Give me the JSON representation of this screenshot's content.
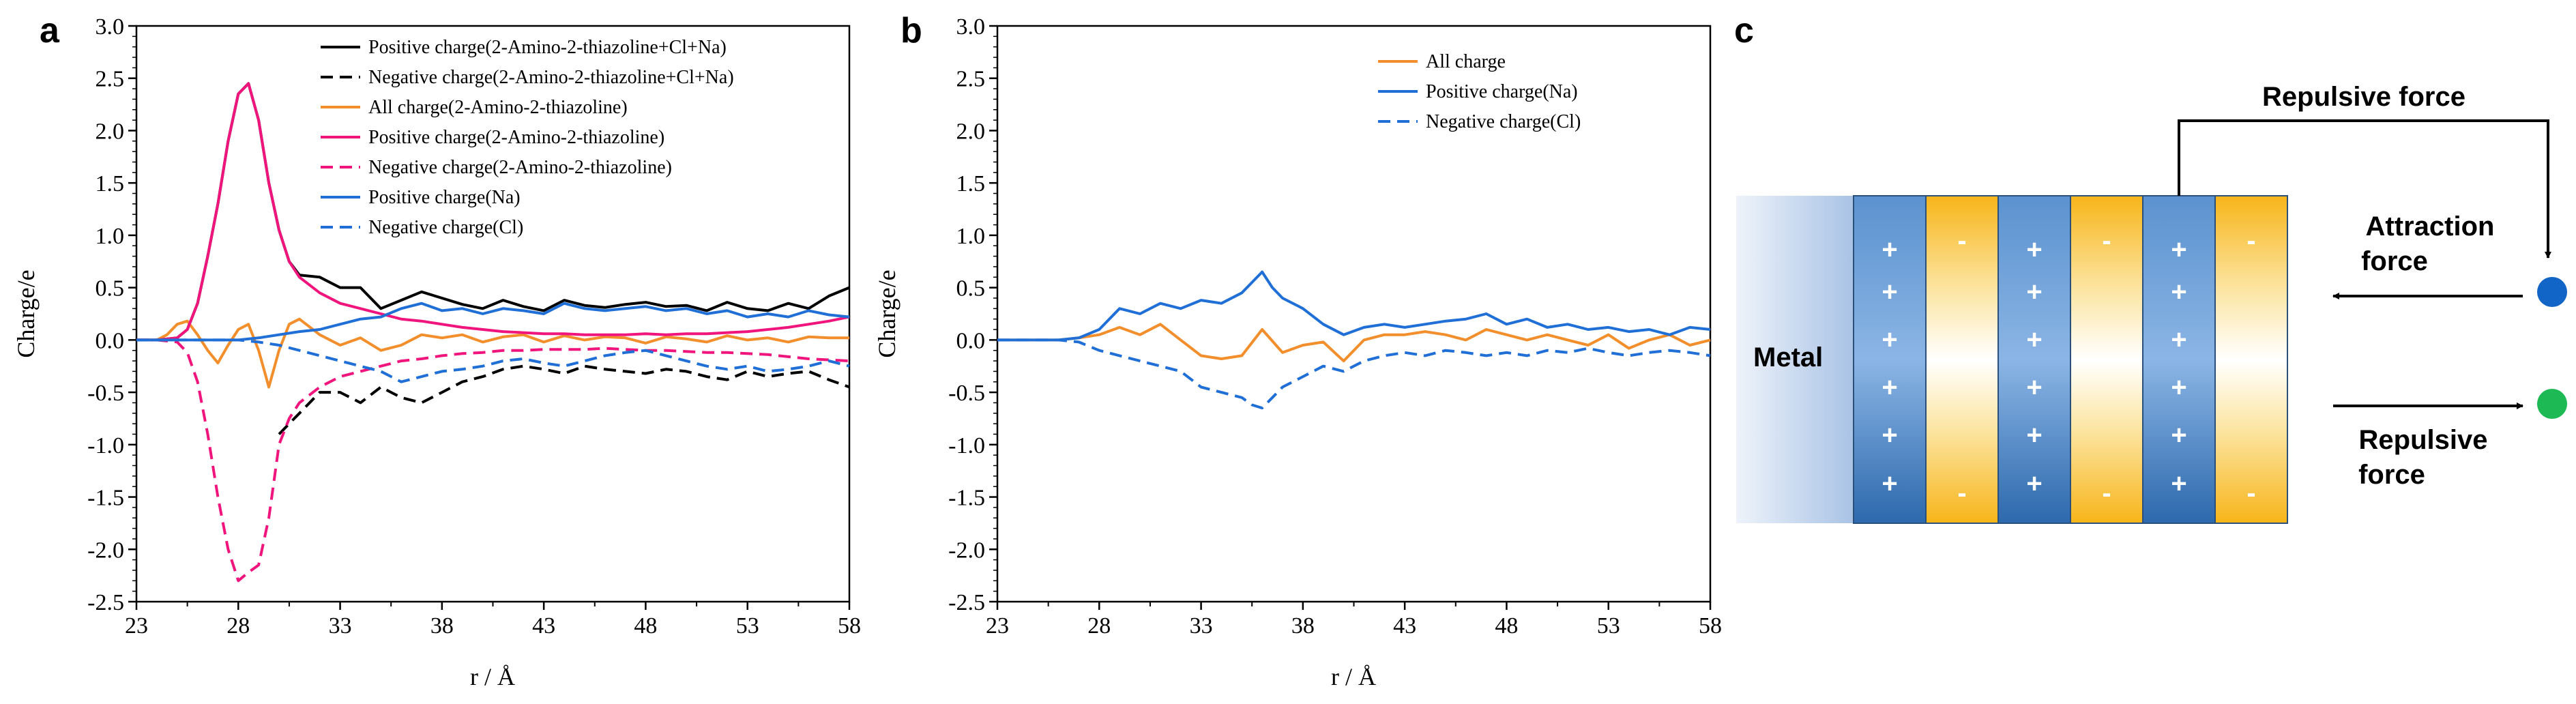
{
  "panels": {
    "a": "a",
    "b": "b",
    "c": "c"
  },
  "colors": {
    "black": "#000000",
    "orange": "#F28E2B",
    "magenta": "#F0157D",
    "blue": "#1F6FD6",
    "metal_light": "#E4ECF7",
    "metal_dark": "#8FAFDD",
    "pos_layer_dark": "#2E6DB0",
    "pos_layer_light": "#8DB6E4",
    "neg_layer": "#F7B921",
    "na_ball": "#1165C7",
    "cl_ball": "#1DB954"
  },
  "chart_data": [
    {
      "type": "line",
      "panel": "a",
      "xlabel": "r / Å",
      "ylabel": "Charge/e",
      "xlim": [
        23,
        58
      ],
      "ylim": [
        -2.5,
        3.0
      ],
      "xticks": [
        23,
        28,
        33,
        38,
        43,
        48,
        53,
        58
      ],
      "yticks": [
        -2.5,
        -2.0,
        -1.5,
        -1.0,
        -0.5,
        0.0,
        0.5,
        1.0,
        1.5,
        2.0,
        2.5,
        3.0
      ],
      "ytick_labels": [
        "-2.5",
        "-2.0",
        "-1.5",
        "-1.0",
        "-0.5",
        "0.0",
        "0.5",
        "1.0",
        "1.5",
        "2.0",
        "2.5",
        "3.0"
      ],
      "legend_position": "top-right",
      "series": [
        {
          "name": "Positive charge(2-Amino-2-thiazoline+Cl+Na)",
          "color": "#000000",
          "dash": false,
          "x": [
            23,
            24,
            25,
            25.5,
            26,
            26.5,
            27,
            27.5,
            28,
            28.5,
            29,
            29.5,
            30,
            30.5,
            31,
            32,
            33,
            34,
            35,
            36,
            37,
            38,
            39,
            40,
            41,
            42,
            43,
            44,
            45,
            46,
            47,
            48,
            49,
            50,
            51,
            52,
            53,
            54,
            55,
            56,
            57,
            58
          ],
          "y": [
            0,
            0,
            0.02,
            0.1,
            0.35,
            0.8,
            1.3,
            1.9,
            2.35,
            2.45,
            2.1,
            1.5,
            1.05,
            0.75,
            0.62,
            0.6,
            0.5,
            0.5,
            0.3,
            0.38,
            0.46,
            0.4,
            0.34,
            0.3,
            0.38,
            0.32,
            0.28,
            0.38,
            0.33,
            0.31,
            0.34,
            0.36,
            0.32,
            0.33,
            0.28,
            0.36,
            0.3,
            0.28,
            0.35,
            0.3,
            0.42,
            0.5
          ]
        },
        {
          "name": "Negative charge(2-Amino-2-thiazoline+Cl+Na)",
          "color": "#000000",
          "dash": true,
          "x": [
            30,
            30.5,
            31,
            32,
            33,
            34,
            35,
            36,
            37,
            38,
            39,
            40,
            41,
            42,
            43,
            44,
            45,
            46,
            47,
            48,
            49,
            50,
            51,
            52,
            53,
            54,
            55,
            56,
            57,
            58
          ],
          "y": [
            -0.9,
            -0.8,
            -0.7,
            -0.5,
            -0.5,
            -0.6,
            -0.45,
            -0.55,
            -0.6,
            -0.5,
            -0.4,
            -0.35,
            -0.28,
            -0.25,
            -0.28,
            -0.32,
            -0.25,
            -0.28,
            -0.3,
            -0.32,
            -0.28,
            -0.3,
            -0.35,
            -0.38,
            -0.3,
            -0.35,
            -0.32,
            -0.3,
            -0.38,
            -0.45
          ]
        },
        {
          "name": "All charge(2-Amino-2-thiazoline)",
          "color": "#F28E2B",
          "dash": false,
          "x": [
            23,
            24,
            24.5,
            25,
            25.5,
            26,
            26.5,
            27,
            27.5,
            28,
            28.5,
            29,
            29.5,
            30,
            30.5,
            31,
            32,
            33,
            34,
            35,
            36,
            37,
            38,
            39,
            40,
            41,
            42,
            43,
            44,
            45,
            46,
            47,
            48,
            49,
            50,
            51,
            52,
            53,
            54,
            55,
            56,
            57,
            58
          ],
          "y": [
            0,
            0,
            0.05,
            0.15,
            0.18,
            0.05,
            -0.1,
            -0.22,
            -0.05,
            0.1,
            0.15,
            -0.1,
            -0.45,
            -0.1,
            0.15,
            0.2,
            0.05,
            -0.05,
            0.02,
            -0.1,
            -0.05,
            0.05,
            0.02,
            0.05,
            -0.02,
            0.03,
            0.05,
            -0.02,
            0.04,
            0,
            0.03,
            0.02,
            -0.03,
            0.03,
            0.01,
            -0.02,
            0.04,
            0,
            0.02,
            -0.02,
            0.03,
            0.02,
            0.02
          ]
        },
        {
          "name": "Positive charge(2-Amino-2-thiazoline)",
          "color": "#F0157D",
          "dash": false,
          "x": [
            23,
            24,
            25,
            25.5,
            26,
            26.5,
            27,
            27.5,
            28,
            28.5,
            29,
            29.5,
            30,
            30.5,
            31,
            32,
            33,
            34,
            35,
            36,
            37,
            38,
            39,
            40,
            41,
            42,
            43,
            44,
            45,
            46,
            47,
            48,
            49,
            50,
            51,
            52,
            53,
            54,
            55,
            56,
            57,
            58
          ],
          "y": [
            0,
            0,
            0.02,
            0.1,
            0.35,
            0.8,
            1.3,
            1.9,
            2.35,
            2.45,
            2.1,
            1.5,
            1.05,
            0.75,
            0.6,
            0.45,
            0.35,
            0.3,
            0.25,
            0.2,
            0.18,
            0.15,
            0.12,
            0.1,
            0.08,
            0.07,
            0.06,
            0.06,
            0.05,
            0.05,
            0.05,
            0.06,
            0.05,
            0.06,
            0.06,
            0.07,
            0.08,
            0.1,
            0.12,
            0.15,
            0.18,
            0.22
          ]
        },
        {
          "name": "Negative charge(2-Amino-2-thiazoline)",
          "color": "#F0157D",
          "dash": true,
          "x": [
            23,
            24,
            25,
            25.5,
            26,
            26.5,
            27,
            27.5,
            28,
            28.5,
            29,
            29.5,
            30,
            30.5,
            31,
            32,
            33,
            34,
            35,
            36,
            37,
            38,
            39,
            40,
            41,
            42,
            43,
            44,
            45,
            46,
            47,
            48,
            49,
            50,
            51,
            52,
            53,
            54,
            55,
            56,
            57,
            58
          ],
          "y": [
            0,
            0,
            -0.02,
            -0.12,
            -0.4,
            -0.9,
            -1.5,
            -2.0,
            -2.3,
            -2.22,
            -2.15,
            -1.7,
            -1.0,
            -0.75,
            -0.6,
            -0.45,
            -0.35,
            -0.3,
            -0.25,
            -0.2,
            -0.18,
            -0.15,
            -0.13,
            -0.12,
            -0.1,
            -0.1,
            -0.09,
            -0.09,
            -0.09,
            -0.08,
            -0.09,
            -0.1,
            -0.1,
            -0.11,
            -0.12,
            -0.12,
            -0.13,
            -0.14,
            -0.16,
            -0.18,
            -0.19,
            -0.2
          ]
        },
        {
          "name": "Positive charge(Na)",
          "color": "#1F6FD6",
          "dash": false,
          "x": [
            23,
            24,
            25,
            26,
            27,
            28,
            29,
            30,
            31,
            32,
            33,
            34,
            35,
            36,
            37,
            38,
            39,
            40,
            41,
            42,
            43,
            44,
            45,
            46,
            47,
            48,
            49,
            50,
            51,
            52,
            53,
            54,
            55,
            56,
            57,
            58
          ],
          "y": [
            0,
            0,
            0,
            0,
            0,
            0,
            0.02,
            0.05,
            0.08,
            0.1,
            0.15,
            0.2,
            0.22,
            0.3,
            0.35,
            0.28,
            0.3,
            0.25,
            0.3,
            0.28,
            0.25,
            0.35,
            0.3,
            0.28,
            0.3,
            0.32,
            0.28,
            0.3,
            0.25,
            0.28,
            0.22,
            0.25,
            0.22,
            0.28,
            0.24,
            0.22
          ]
        },
        {
          "name": "Negative charge(Cl)",
          "color": "#1F6FD6",
          "dash": true,
          "x": [
            23,
            24,
            25,
            26,
            27,
            28,
            29,
            30,
            31,
            32,
            33,
            34,
            35,
            36,
            37,
            38,
            39,
            40,
            41,
            42,
            43,
            44,
            45,
            46,
            47,
            48,
            49,
            50,
            51,
            52,
            53,
            54,
            55,
            56,
            57,
            58
          ],
          "y": [
            0,
            0,
            0,
            0,
            0,
            0,
            -0.02,
            -0.05,
            -0.1,
            -0.15,
            -0.2,
            -0.25,
            -0.3,
            -0.4,
            -0.35,
            -0.3,
            -0.28,
            -0.25,
            -0.2,
            -0.18,
            -0.22,
            -0.25,
            -0.2,
            -0.15,
            -0.12,
            -0.1,
            -0.15,
            -0.2,
            -0.25,
            -0.28,
            -0.25,
            -0.3,
            -0.28,
            -0.25,
            -0.2,
            -0.25
          ]
        }
      ]
    },
    {
      "type": "line",
      "panel": "b",
      "xlabel": "r / Å",
      "ylabel": "Charge/e",
      "xlim": [
        23,
        58
      ],
      "ylim": [
        -2.5,
        3.0
      ],
      "xticks": [
        23,
        28,
        33,
        38,
        43,
        48,
        53,
        58
      ],
      "yticks": [
        -2.5,
        -2.0,
        -1.5,
        -1.0,
        -0.5,
        0.0,
        0.5,
        1.0,
        1.5,
        2.0,
        2.5,
        3.0
      ],
      "ytick_labels": [
        "-2.5",
        "-2.0",
        "-1.5",
        "-1.0",
        "-0.5",
        "0.0",
        "0.5",
        "1.0",
        "1.5",
        "2.0",
        "2.5",
        "3.0"
      ],
      "legend_position": "top-center",
      "series": [
        {
          "name": "All charge",
          "color": "#F28E2B",
          "dash": false,
          "x": [
            23,
            25,
            26,
            27,
            28,
            29,
            30,
            31,
            32,
            33,
            34,
            35,
            36,
            37,
            38,
            39,
            40,
            41,
            42,
            43,
            44,
            45,
            46,
            47,
            48,
            49,
            50,
            51,
            52,
            53,
            54,
            55,
            56,
            57,
            58
          ],
          "y": [
            0,
            0,
            0,
            0.02,
            0.05,
            0.12,
            0.05,
            0.15,
            0.0,
            -0.15,
            -0.18,
            -0.15,
            0.1,
            -0.12,
            -0.05,
            -0.02,
            -0.2,
            0.0,
            0.05,
            0.05,
            0.08,
            0.05,
            0.0,
            0.1,
            0.05,
            0.0,
            0.05,
            0.0,
            -0.05,
            0.05,
            -0.08,
            0.0,
            0.05,
            -0.05,
            0.0
          ]
        },
        {
          "name": "Positive charge(Na)",
          "color": "#1F6FD6",
          "dash": false,
          "x": [
            23,
            25,
            26,
            27,
            28,
            29,
            30,
            31,
            32,
            33,
            34,
            35,
            35.5,
            36,
            36.5,
            37,
            38,
            39,
            40,
            41,
            42,
            43,
            44,
            45,
            46,
            47,
            48,
            49,
            50,
            51,
            52,
            53,
            54,
            55,
            56,
            57,
            58
          ],
          "y": [
            0,
            0,
            0,
            0.02,
            0.1,
            0.3,
            0.25,
            0.35,
            0.3,
            0.38,
            0.35,
            0.45,
            0.55,
            0.65,
            0.5,
            0.4,
            0.3,
            0.15,
            0.05,
            0.12,
            0.15,
            0.12,
            0.15,
            0.18,
            0.2,
            0.25,
            0.15,
            0.2,
            0.12,
            0.15,
            0.1,
            0.12,
            0.08,
            0.1,
            0.05,
            0.12,
            0.1
          ]
        },
        {
          "name": "Negative charge(Cl)",
          "color": "#1F6FD6",
          "dash": true,
          "x": [
            23,
            25,
            26,
            27,
            28,
            29,
            30,
            31,
            32,
            33,
            34,
            35,
            35.5,
            36,
            36.5,
            37,
            38,
            39,
            40,
            41,
            42,
            43,
            44,
            45,
            46,
            47,
            48,
            49,
            50,
            51,
            52,
            53,
            54,
            55,
            56,
            57,
            58
          ],
          "y": [
            0,
            0,
            0,
            -0.02,
            -0.1,
            -0.15,
            -0.2,
            -0.25,
            -0.3,
            -0.45,
            -0.5,
            -0.55,
            -0.62,
            -0.65,
            -0.55,
            -0.45,
            -0.35,
            -0.25,
            -0.3,
            -0.2,
            -0.15,
            -0.12,
            -0.15,
            -0.1,
            -0.12,
            -0.15,
            -0.12,
            -0.15,
            -0.1,
            -0.12,
            -0.08,
            -0.12,
            -0.15,
            -0.12,
            -0.1,
            -0.12,
            -0.15
          ]
        }
      ]
    }
  ],
  "diagram": {
    "metal_label": "Metal",
    "repulsive_top": "Repulsive force",
    "attraction_line1": "Attraction",
    "attraction_line2": "force",
    "repulsive_line1": "Repulsive",
    "repulsive_line2": "force",
    "plus": "+",
    "minus": "-"
  }
}
